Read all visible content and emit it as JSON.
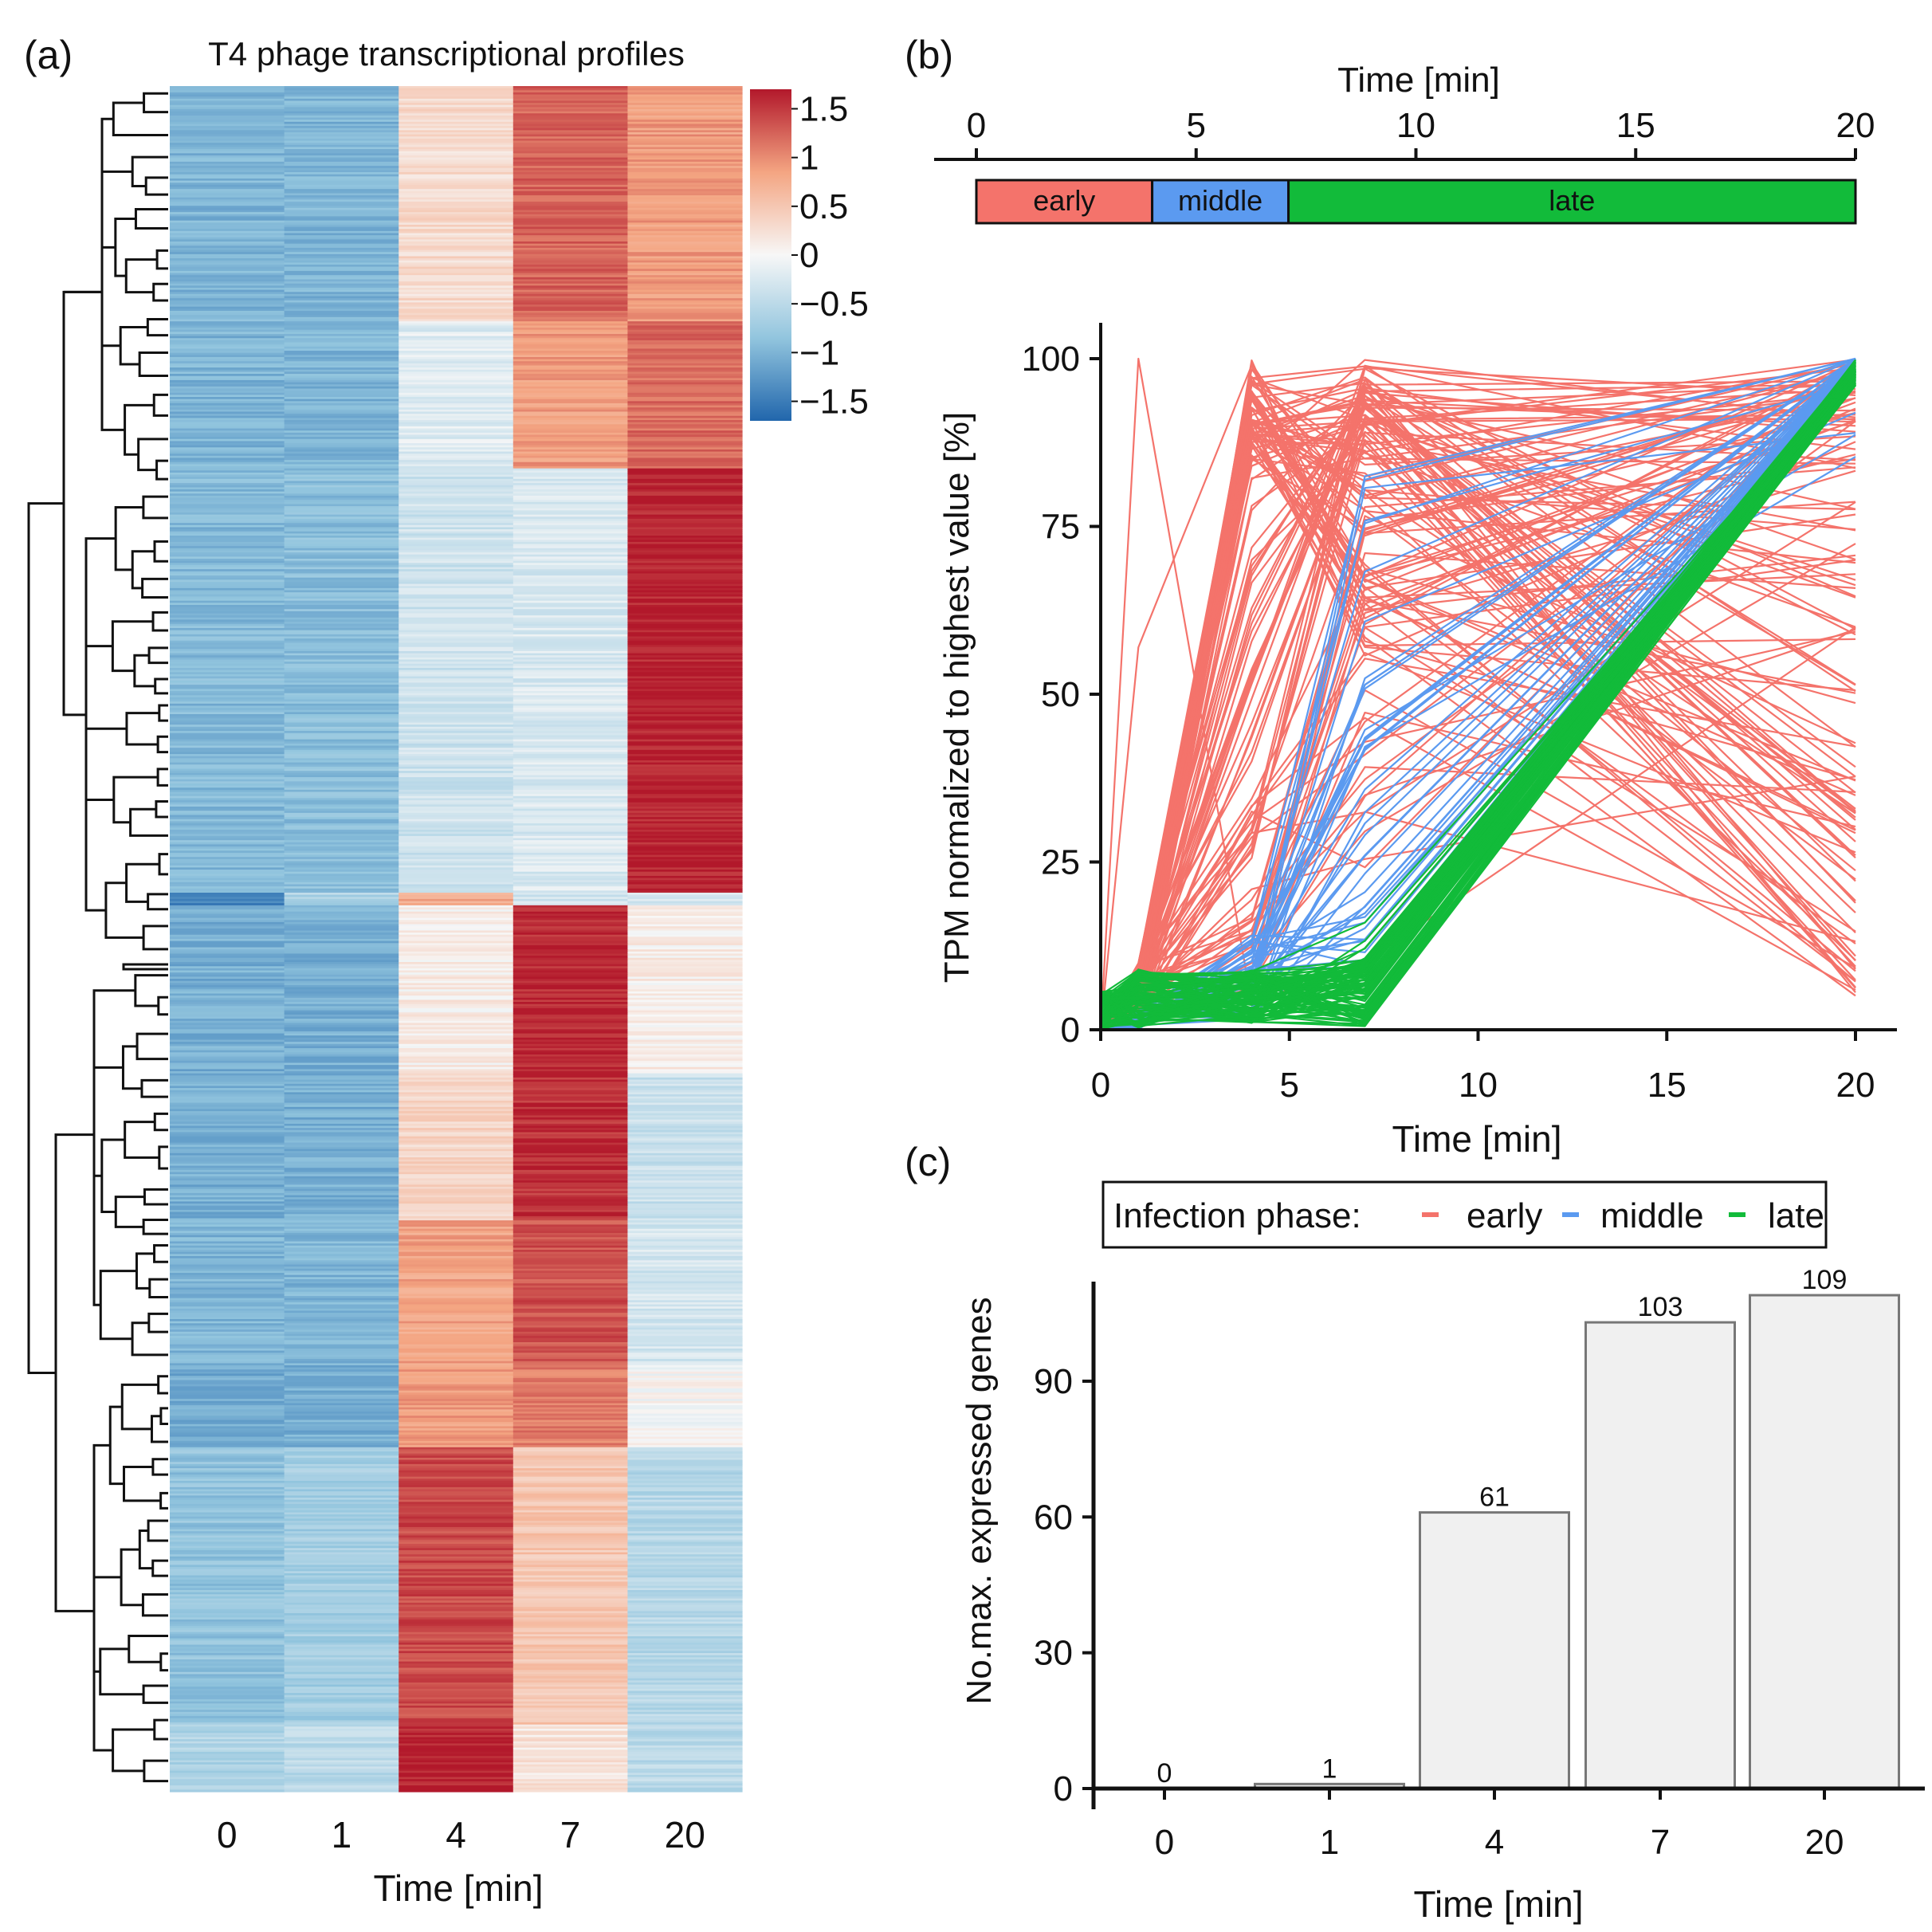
{
  "panel_a": {
    "panel_label": "(a)",
    "title": "T4 phage transcriptional profiles",
    "xlabel": "Time [min]",
    "columns": [
      "0",
      "1",
      "4",
      "7",
      "20"
    ],
    "colorbar_ticks": [
      {
        "value": 1.5,
        "label": "1.5"
      },
      {
        "value": 1,
        "label": "1"
      },
      {
        "value": 0.5,
        "label": "0.5"
      },
      {
        "value": 0,
        "label": "0"
      },
      {
        "value": -0.5,
        "label": "−0.5"
      },
      {
        "value": -1,
        "label": "−1"
      },
      {
        "value": -1.5,
        "label": "−1.5"
      }
    ],
    "colors": {
      "low": "#2e6fb3",
      "mid": "#f5f5f5",
      "high": "#b2182b"
    }
  },
  "panel_b": {
    "panel_label": "(b)",
    "timeline": {
      "title": "Time [min]",
      "ticks": [
        0,
        5,
        10,
        15,
        20
      ],
      "phases": [
        {
          "name": "early",
          "start": 0,
          "end": 4,
          "color": "#f4736b"
        },
        {
          "name": "middle",
          "start": 4,
          "end": 7.1,
          "color": "#5b9af0"
        },
        {
          "name": "late",
          "start": 7.1,
          "end": 20,
          "color": "#12bb3a"
        }
      ]
    },
    "legend": {
      "title": "Infection phase:",
      "items": [
        {
          "name": "early",
          "color": "#f4736b"
        },
        {
          "name": "middle",
          "color": "#5b9af0"
        },
        {
          "name": "late",
          "color": "#12bb3a"
        }
      ]
    }
  },
  "panel_c": {
    "panel_label": "(c)"
  },
  "chart_data": [
    {
      "type": "heatmap",
      "title": "T4 phage transcriptional profiles",
      "xlabel": "Time [min]",
      "categories": [
        "0",
        "1",
        "4",
        "7",
        "20"
      ],
      "color_range": [
        -1.7,
        1.7
      ],
      "row_blocks": [
        {
          "rows": 112,
          "values": [
            -1.0,
            -1.0,
            0.3,
            1.25,
            0.9
          ]
        },
        {
          "rows": 70,
          "values": [
            -1.0,
            -1.0,
            -0.2,
            0.9,
            1.2
          ]
        },
        {
          "rows": 202,
          "values": [
            -0.95,
            -0.9,
            -0.35,
            -0.25,
            1.65
          ]
        },
        {
          "rows": 6,
          "values": [
            -1.5,
            -0.6,
            0.8,
            -0.3,
            -0.3
          ]
        },
        {
          "rows": 80,
          "values": [
            -1.05,
            -1.05,
            0.1,
            1.6,
            0.1
          ]
        },
        {
          "rows": 70,
          "values": [
            -1.05,
            -1.05,
            0.35,
            1.55,
            -0.4
          ]
        },
        {
          "rows": 68,
          "values": [
            -1.0,
            -1.0,
            0.85,
            1.35,
            -0.3
          ]
        },
        {
          "rows": 40,
          "values": [
            -1.1,
            -1.05,
            0.9,
            1.1,
            0.0
          ]
        },
        {
          "rows": 132,
          "values": [
            -0.85,
            -0.7,
            1.4,
            0.5,
            -0.55
          ]
        },
        {
          "rows": 32,
          "values": [
            -0.6,
            -0.5,
            1.65,
            0.2,
            -0.5
          ]
        }
      ]
    },
    {
      "type": "line",
      "title": "",
      "xlabel": "Time [min]",
      "ylabel": "TPM normalized to highest value [%]",
      "x": [
        0,
        1,
        4,
        7,
        20
      ],
      "xlim": [
        0,
        20
      ],
      "ylim": [
        0,
        100
      ],
      "xticks": [
        0,
        5,
        10,
        15,
        20
      ],
      "yticks": [
        0,
        25,
        50,
        75,
        100
      ],
      "series": [
        {
          "name": "early",
          "color": "#f4736b",
          "note": "approx. 130 genes; peak mostly at 4 or 7 min, many decline by 20 min (5-100%)"
        },
        {
          "name": "middle",
          "color": "#5b9af0",
          "note": "approx. 40 genes; low at 0-4 min, rising at 7 min, peak near 20 min"
        },
        {
          "name": "late",
          "color": "#12bb3a",
          "note": "approx. 100 genes; near 0-10% until 7 min, peak 100% at 20 min"
        }
      ]
    },
    {
      "type": "bar",
      "title": "",
      "xlabel": "Time [min]",
      "ylabel": "No.max. expressed genes",
      "categories": [
        "0",
        "1",
        "4",
        "7",
        "20"
      ],
      "values": [
        0,
        1,
        61,
        103,
        109
      ],
      "data_labels": [
        "0",
        "1",
        "61",
        "103",
        "109"
      ],
      "ylim": [
        0,
        112
      ],
      "yticks": [
        0,
        30,
        60,
        90
      ]
    }
  ]
}
